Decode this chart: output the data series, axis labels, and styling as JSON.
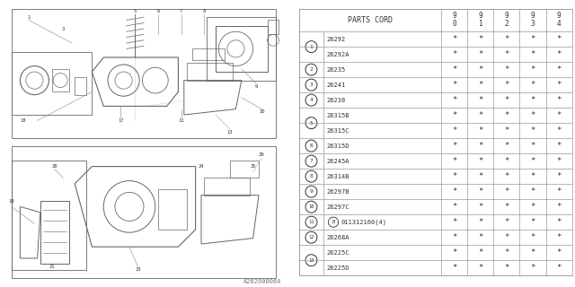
{
  "diagram_label": "A262000064",
  "rows": [
    {
      "ref": "1",
      "parts": [
        "26292",
        "26292A"
      ]
    },
    {
      "ref": "2",
      "parts": [
        "26235"
      ]
    },
    {
      "ref": "3",
      "parts": [
        "26241"
      ]
    },
    {
      "ref": "4",
      "parts": [
        "26238"
      ]
    },
    {
      "ref": "5",
      "parts": [
        "26315B",
        "26315C"
      ]
    },
    {
      "ref": "6",
      "parts": [
        "26315D"
      ]
    },
    {
      "ref": "7",
      "parts": [
        "26245A"
      ]
    },
    {
      "ref": "8",
      "parts": [
        "26314B"
      ]
    },
    {
      "ref": "9",
      "parts": [
        "26297B"
      ]
    },
    {
      "ref": "10",
      "parts": [
        "26297C"
      ]
    },
    {
      "ref": "11",
      "parts": [
        "011312160(4)"
      ]
    },
    {
      "ref": "12",
      "parts": [
        "26268A"
      ]
    },
    {
      "ref": "13",
      "parts": [
        "26225C",
        "26225D"
      ]
    }
  ],
  "year_labels": [
    "9\n0",
    "9\n1",
    "9\n2",
    "9\n3",
    "9\n4"
  ],
  "star": "*",
  "bg_color": "#ffffff",
  "lc": "#999999",
  "tc": "#333333",
  "diagram_lc": "#666666"
}
